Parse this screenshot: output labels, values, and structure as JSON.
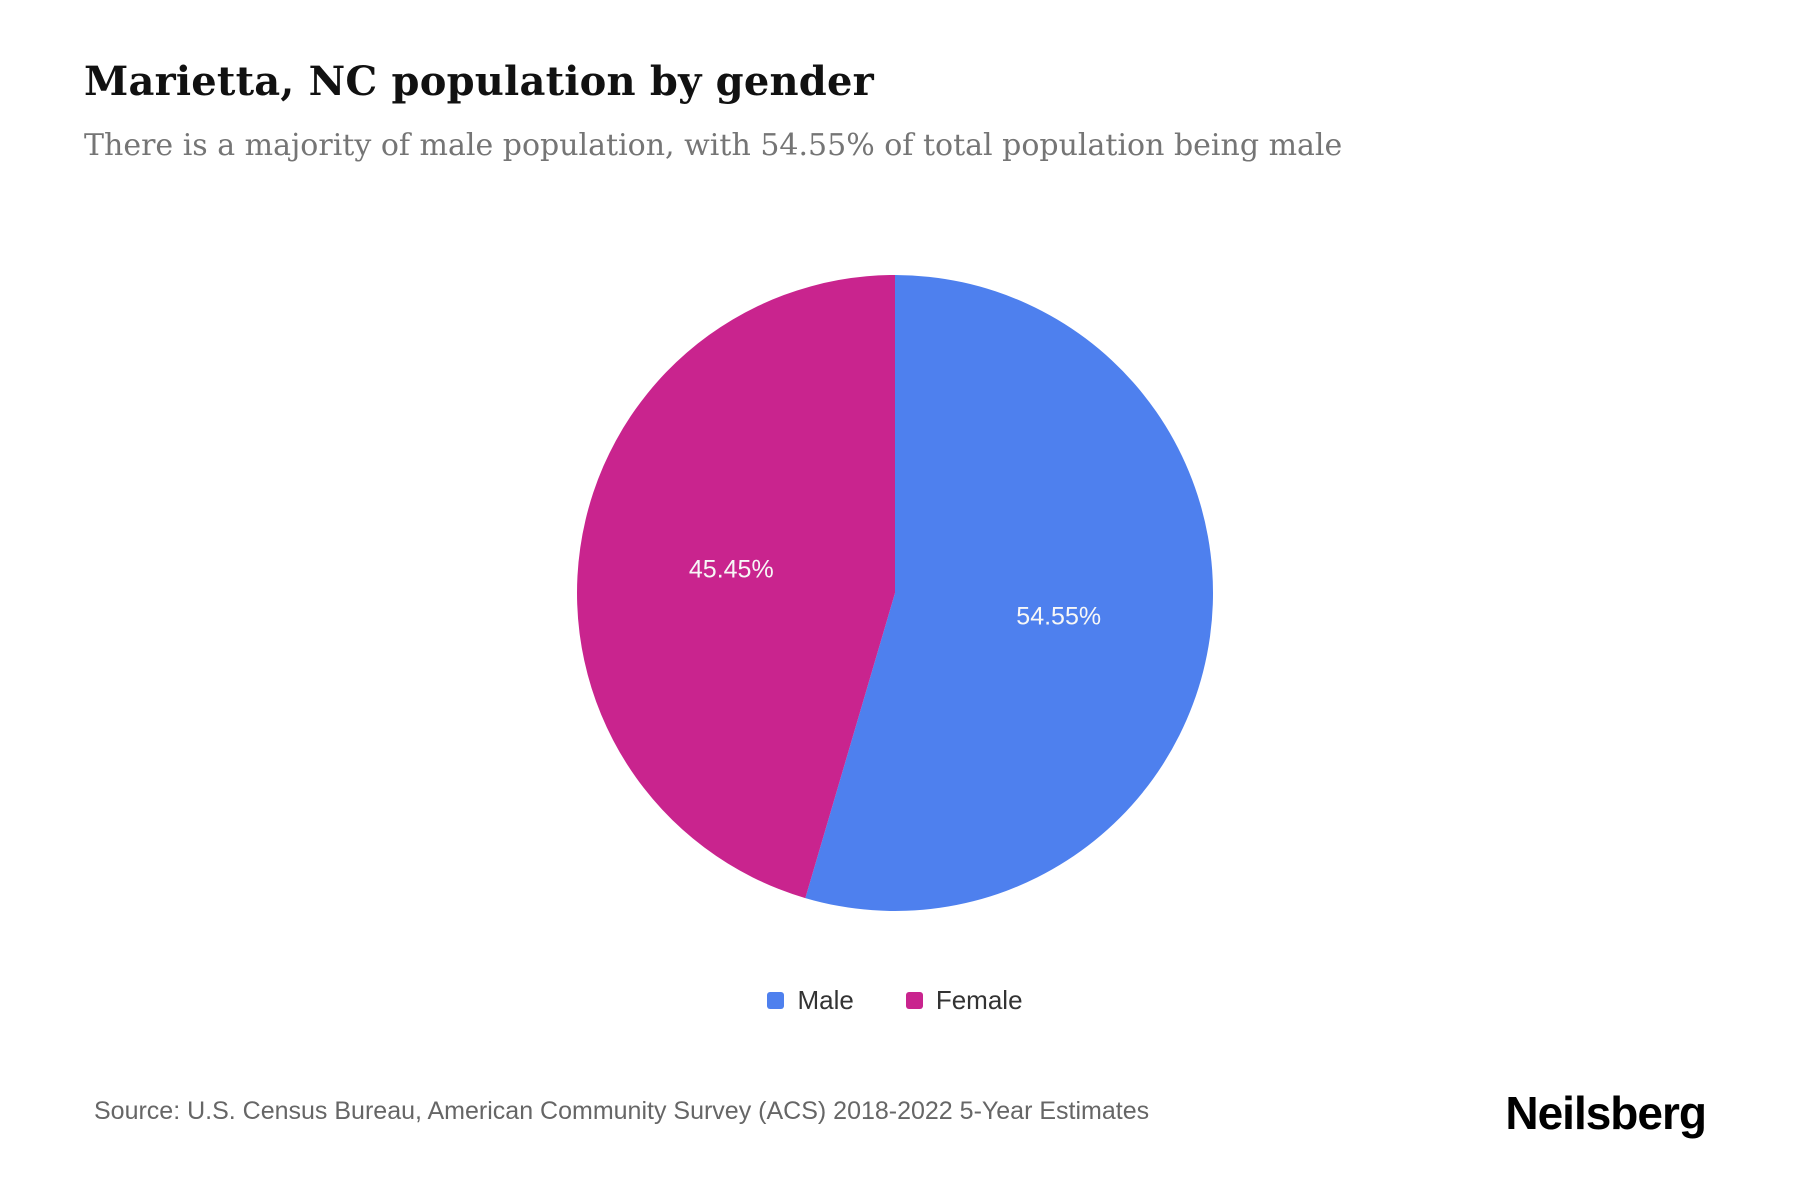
{
  "page": {
    "title": "Marietta, NC population by gender",
    "subtitle": "There is a majority of male population, with 54.55% of total population being male",
    "source": "Source: U.S. Census Bureau, American Community Survey (ACS) 2018-2022 5-Year Estimates",
    "brand": "Neilsberg"
  },
  "chart_data": {
    "type": "pie",
    "title": "Marietta, NC population by gender",
    "start_angle_deg": 0,
    "direction": "clockwise",
    "legend_position": "bottom",
    "label_color": "#f7f7f7",
    "segments": [
      {
        "label": "Male",
        "value": 54.55,
        "display": "54.55%",
        "color": "#4e80ee"
      },
      {
        "label": "Female",
        "value": 45.45,
        "display": "45.45%",
        "color": "#c9248e"
      }
    ]
  }
}
